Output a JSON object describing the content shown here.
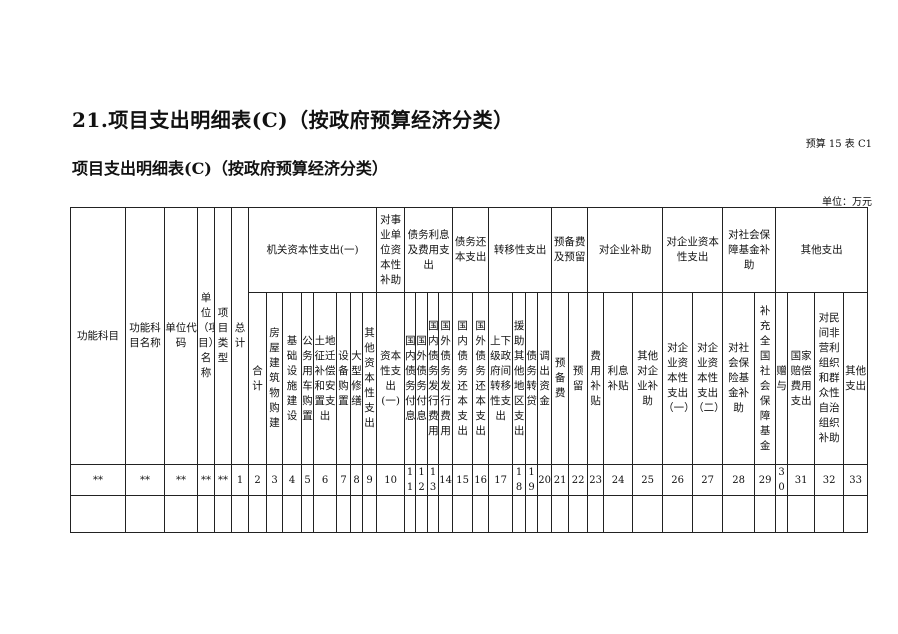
{
  "document": {
    "title": "21.项目支出明细表(C)（按政府预算经济分类）",
    "table_code": "预算 15 表 C1",
    "subtitle": "项目支出明细表(C)（按政府预算经济分类）",
    "unit": "单位：万元"
  },
  "table": {
    "fixed_columns": [
      "功能科目",
      "功能科目名称",
      "单位代码",
      "单位（项目）名称",
      "项目类型",
      "总计"
    ],
    "groups": [
      {
        "label": "机关资本性支出(一)",
        "columns": [
          "合计",
          "房屋建筑物购建",
          "基础设施建设",
          "公务用车购置",
          "土地征迁补偿和安置支出",
          "设备购置",
          "大型修缮",
          "其他资本性支出"
        ]
      },
      {
        "label": "对事业单位资本性补助",
        "columns": [
          "资本性支出(一)"
        ]
      },
      {
        "label": "债务利息及费用支出",
        "columns": [
          "国内债务付息",
          "国外债务付息",
          "国内债务发行费用",
          "国外债务发行费用"
        ]
      },
      {
        "label": "债务还本支出",
        "columns": [
          "国内债务还本支出",
          "国外债务还本支出"
        ]
      },
      {
        "label": "转移性支出",
        "columns": [
          "上下级政府间转移性支出",
          "援助其他地区支出",
          "债务转贷",
          "调出资金"
        ]
      },
      {
        "label": "预备费及预留",
        "columns": [
          "预备费",
          "预留"
        ]
      },
      {
        "label": "对企业补助",
        "columns": [
          "费用补贴",
          "利息补贴",
          "其他对企业补助"
        ]
      },
      {
        "label": "对企业资本性支出",
        "columns": [
          "对企业资本性支出（一）",
          "对企业资本性支出（二）"
        ]
      },
      {
        "label": "对社会保障基金补助",
        "columns": [
          "对社会保险基金补助",
          "补充全国社会保障基金"
        ]
      },
      {
        "label": "其他支出",
        "columns": [
          "赠与",
          "国家赔偿费用支出",
          "对民间非营利组织和群众性自治组织补助",
          "其他支出"
        ]
      }
    ],
    "number_row": [
      "**",
      "**",
      "**",
      "**",
      "**",
      "1",
      "2",
      "3",
      "4",
      "5",
      "6",
      "7",
      "8",
      "9",
      "10",
      "11",
      "12",
      "13",
      "14",
      "15",
      "16",
      "17",
      "18",
      "19",
      "20",
      "21",
      "22",
      "23",
      "24",
      "25",
      "26",
      "27",
      "28",
      "29",
      "30",
      "31",
      "32",
      "33"
    ]
  }
}
